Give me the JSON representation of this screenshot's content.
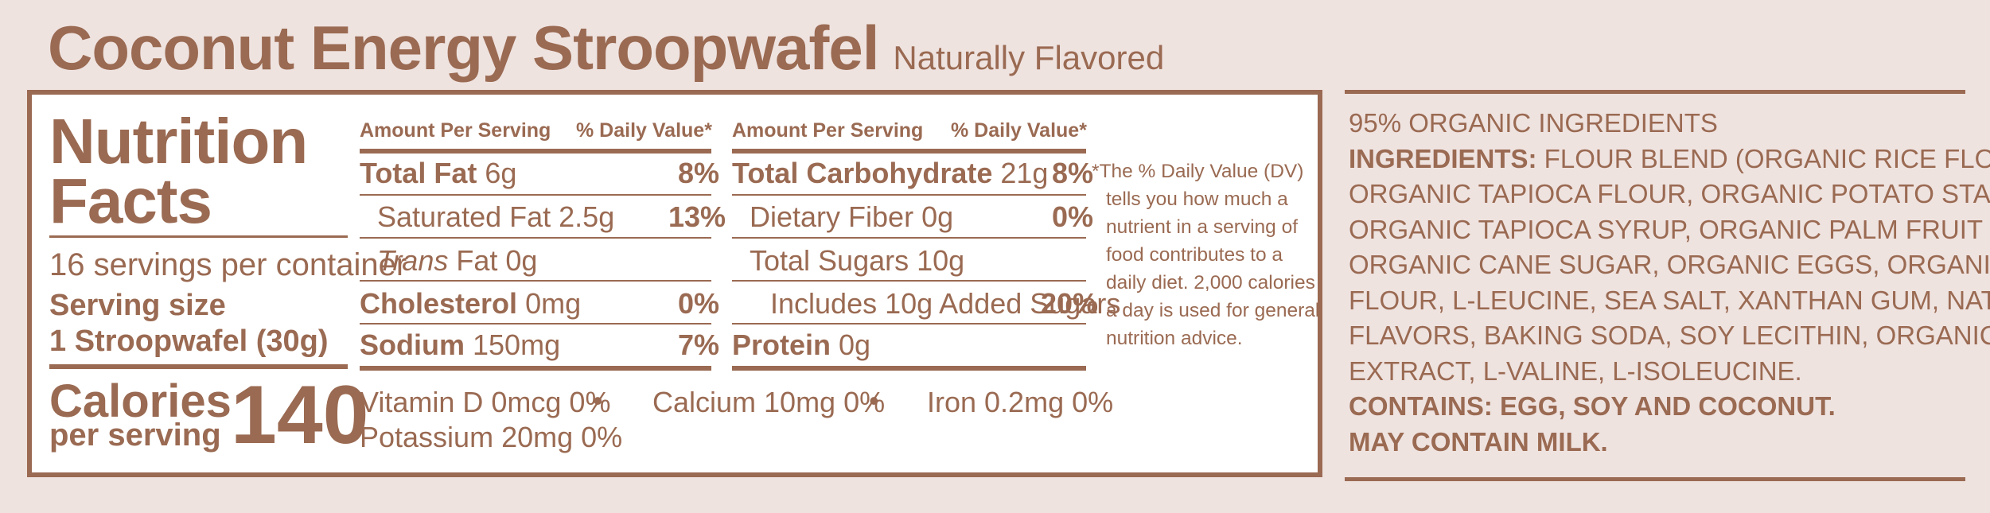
{
  "title": "Coconut Energy Stroopwafel",
  "subtitle": "Naturally Flavored",
  "nutrition": {
    "heading_line1": "Nutrition",
    "heading_line2": "Facts",
    "servings_per_container": "16 servings per container",
    "serving_size_label": "Serving size",
    "serving_size_value": "1 Stroopwafel (30g)",
    "calories_label": "Calories",
    "per_serving_label": "per serving",
    "calories_value": "140",
    "col_header_amount": "Amount Per Serving",
    "col_header_dv": "% Daily Value*",
    "left_rows": [
      {
        "name": "Total Fat",
        "amount": "6g",
        "dv": "8%"
      },
      {
        "name": "Saturated Fat",
        "amount": "2.5g",
        "dv": "13%"
      },
      {
        "name": "Trans",
        "name_suffix": "Fat",
        "amount": "0g",
        "dv": ""
      },
      {
        "name": "Cholesterol",
        "amount": "0mg",
        "dv": "0%"
      },
      {
        "name": "Sodium",
        "amount": "150mg",
        "dv": "7%"
      }
    ],
    "right_rows": [
      {
        "name": "Total Carbohydrate",
        "amount": "21g",
        "dv": "8%"
      },
      {
        "name": "Dietary Fiber",
        "amount": "0g",
        "dv": "0%"
      },
      {
        "name": "Total Sugars",
        "amount": "10g",
        "dv": ""
      },
      {
        "name": "Includes 10g Added Sugars",
        "amount": "",
        "dv": "20%"
      },
      {
        "name": "Protein",
        "amount": "0g",
        "dv": ""
      }
    ],
    "micros": {
      "vitamin_d": "Vitamin D 0mcg 0%",
      "bullet": "•",
      "calcium": "Calcium 10mg 0%",
      "iron": "Iron 0.2mg 0%",
      "potassium": "Potassium 20mg 0%"
    },
    "footnote_lines": [
      "*The % Daily Value (DV)",
      "tells you how much a",
      "nutrient in a serving of",
      "food contributes to a",
      "daily diet. 2,000 calories",
      "a day is used for general",
      "nutrition advice."
    ]
  },
  "ingredients": {
    "organic_pct": "95% ORGANIC INGREDIENTS",
    "label": "INGREDIENTS:",
    "lines": [
      " FLOUR BLEND (ORGANIC RICE FLOUR,",
      "ORGANIC TAPIOCA FLOUR, ORGANIC POTATO STARCH),",
      "ORGANIC TAPIOCA SYRUP, ORGANIC PALM FRUIT OIL,",
      "ORGANIC CANE SUGAR, ORGANIC EGGS, ORGANIC SOY",
      "FLOUR, L-LEUCINE, SEA SALT, XANTHAN GUM, NATURAL",
      "FLAVORS, BAKING SODA, SOY LECITHIN, ORGANIC RICE",
      "EXTRACT, L-VALINE, L-ISOLEUCINE."
    ],
    "contains": "CONTAINS: EGG, SOY AND COCONUT.",
    "may_contain": "MAY CONTAIN MILK."
  }
}
